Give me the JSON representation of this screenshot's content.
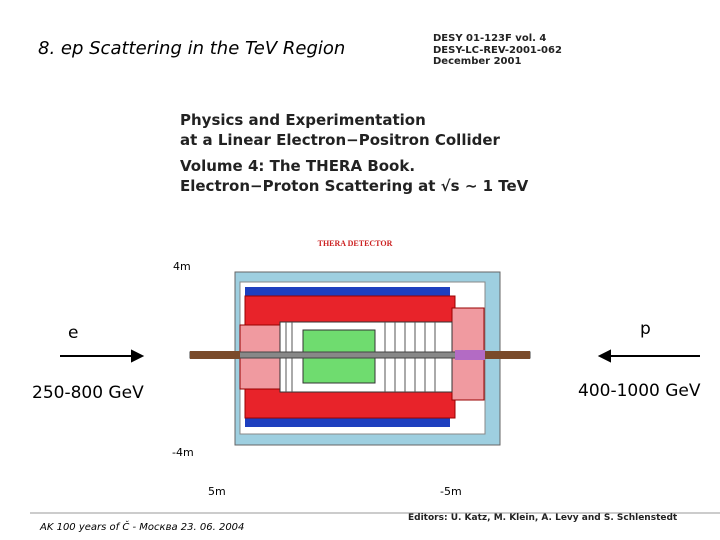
{
  "header": {
    "title": "8. ep Scattering in the TeV Region"
  },
  "report": {
    "lines": [
      "DESY 01-123F vol. 4",
      "DESY-LC-REV-2001-062",
      "December 2001"
    ]
  },
  "book": {
    "lines": [
      "Physics and Experimentation",
      "at a Linear Electron−Positron Collider",
      "Volume 4:  The THERA Book.",
      "Electron−Proton Scattering at √s ∼ 1 TeV"
    ]
  },
  "detector": {
    "label": "THERA DETECTOR",
    "top": "4m",
    "bottom": "-4m",
    "left": "5m",
    "right": "-5m"
  },
  "beams": {
    "electron": {
      "name": "e",
      "energy": "250-800 GeV"
    },
    "proton": {
      "name": "p",
      "energy": "400-1000 GeV"
    }
  },
  "footer": "AK 100 years of Č - Москва  23. 06. 2004",
  "editors": "Editors: U. Katz, M. Klein, A. Levy and S. Schlenstedt"
}
